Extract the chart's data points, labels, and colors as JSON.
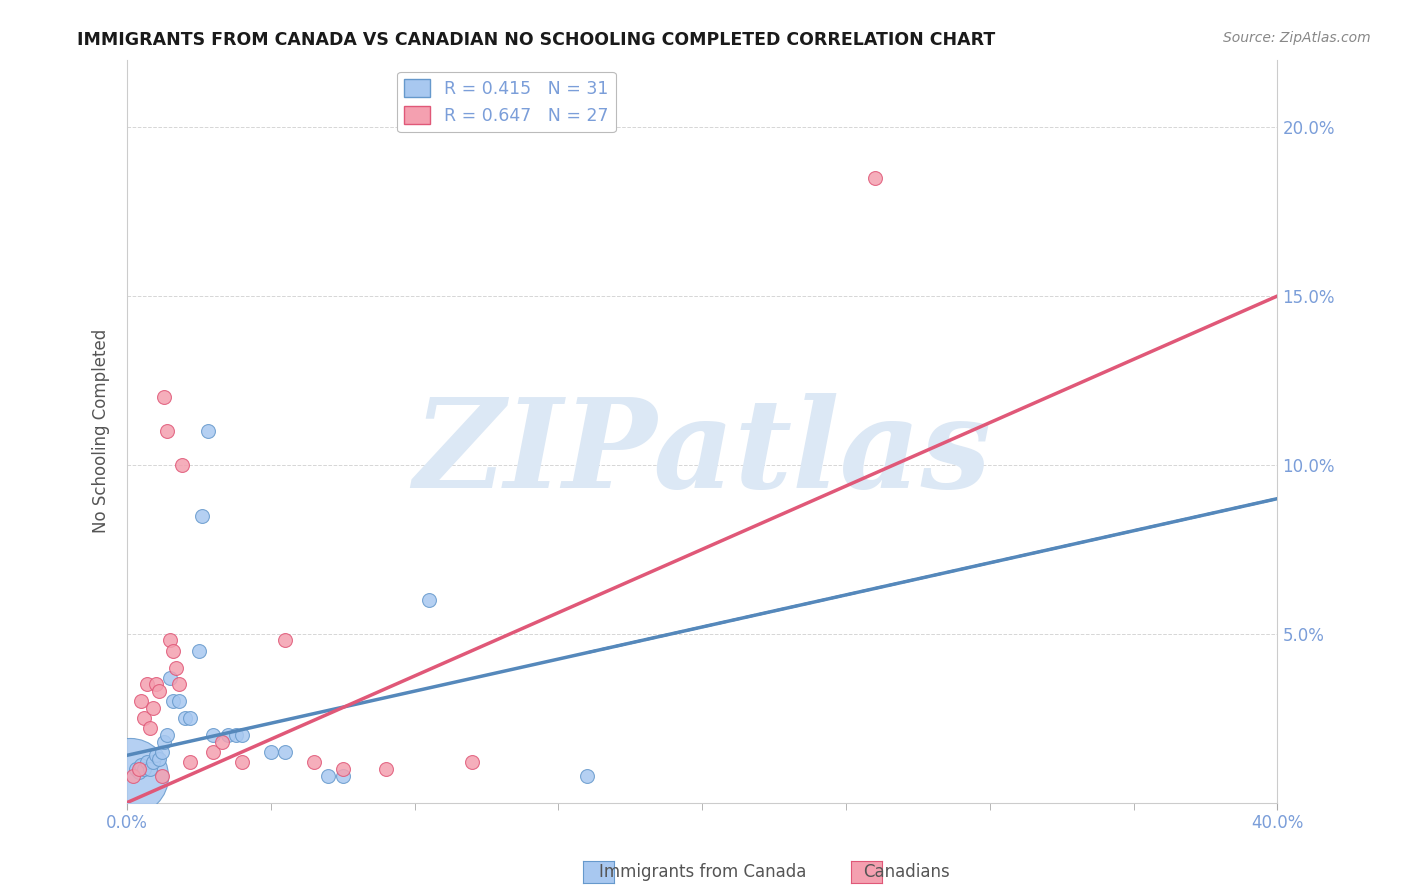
{
  "title": "IMMIGRANTS FROM CANADA VS CANADIAN NO SCHOOLING COMPLETED CORRELATION CHART",
  "source": "Source: ZipAtlas.com",
  "ylabel": "No Schooling Completed",
  "xlim": [
    0.0,
    0.4
  ],
  "ylim": [
    0.0,
    0.22
  ],
  "xtick_positions": [
    0.0,
    0.4
  ],
  "xtick_labels": [
    "0.0%",
    "40.0%"
  ],
  "yticks": [
    0.0,
    0.05,
    0.1,
    0.15,
    0.2
  ],
  "ytick_labels": [
    "",
    "5.0%",
    "10.0%",
    "15.0%",
    "20.0%"
  ],
  "blue_R": "0.415",
  "blue_N": "31",
  "pink_R": "0.647",
  "pink_N": "27",
  "legend_label_blue": "Immigrants from Canada",
  "legend_label_pink": "Canadians",
  "tick_color": "#7b9ed9",
  "grid_color": "#cccccc",
  "blue_color": "#a8c8f0",
  "pink_color": "#f4a0b0",
  "blue_edge_color": "#6699cc",
  "pink_edge_color": "#e05878",
  "blue_line_color": "#5588bb",
  "pink_line_color": "#e05878",
  "blue_scatter": [
    [
      0.001,
      0.008
    ],
    [
      0.003,
      0.01
    ],
    [
      0.004,
      0.009
    ],
    [
      0.005,
      0.011
    ],
    [
      0.006,
      0.01
    ],
    [
      0.007,
      0.012
    ],
    [
      0.008,
      0.01
    ],
    [
      0.009,
      0.012
    ],
    [
      0.01,
      0.014
    ],
    [
      0.011,
      0.013
    ],
    [
      0.012,
      0.015
    ],
    [
      0.013,
      0.018
    ],
    [
      0.014,
      0.02
    ],
    [
      0.015,
      0.037
    ],
    [
      0.016,
      0.03
    ],
    [
      0.018,
      0.03
    ],
    [
      0.02,
      0.025
    ],
    [
      0.022,
      0.025
    ],
    [
      0.025,
      0.045
    ],
    [
      0.026,
      0.085
    ],
    [
      0.028,
      0.11
    ],
    [
      0.03,
      0.02
    ],
    [
      0.035,
      0.02
    ],
    [
      0.038,
      0.02
    ],
    [
      0.04,
      0.02
    ],
    [
      0.05,
      0.015
    ],
    [
      0.055,
      0.015
    ],
    [
      0.07,
      0.008
    ],
    [
      0.075,
      0.008
    ],
    [
      0.105,
      0.06
    ],
    [
      0.16,
      0.008
    ]
  ],
  "blue_scatter_sizes": [
    600,
    20,
    20,
    20,
    20,
    20,
    20,
    20,
    20,
    20,
    20,
    20,
    20,
    20,
    20,
    20,
    20,
    20,
    20,
    20,
    20,
    20,
    20,
    20,
    20,
    20,
    20,
    20,
    20,
    20,
    20
  ],
  "pink_scatter": [
    [
      0.002,
      0.008
    ],
    [
      0.004,
      0.01
    ],
    [
      0.005,
      0.03
    ],
    [
      0.006,
      0.025
    ],
    [
      0.007,
      0.035
    ],
    [
      0.008,
      0.022
    ],
    [
      0.009,
      0.028
    ],
    [
      0.01,
      0.035
    ],
    [
      0.011,
      0.033
    ],
    [
      0.012,
      0.008
    ],
    [
      0.013,
      0.12
    ],
    [
      0.014,
      0.11
    ],
    [
      0.015,
      0.048
    ],
    [
      0.016,
      0.045
    ],
    [
      0.017,
      0.04
    ],
    [
      0.018,
      0.035
    ],
    [
      0.019,
      0.1
    ],
    [
      0.022,
      0.012
    ],
    [
      0.03,
      0.015
    ],
    [
      0.033,
      0.018
    ],
    [
      0.04,
      0.012
    ],
    [
      0.055,
      0.048
    ],
    [
      0.065,
      0.012
    ],
    [
      0.075,
      0.01
    ],
    [
      0.09,
      0.01
    ],
    [
      0.12,
      0.012
    ],
    [
      0.26,
      0.185
    ]
  ],
  "pink_scatter_sizes": [
    20,
    20,
    20,
    20,
    20,
    20,
    20,
    20,
    20,
    20,
    20,
    20,
    20,
    20,
    20,
    20,
    20,
    20,
    20,
    20,
    20,
    20,
    20,
    20,
    20,
    20,
    20
  ],
  "blue_trendline": [
    [
      0.0,
      0.014
    ],
    [
      0.4,
      0.09
    ]
  ],
  "pink_trendline": [
    [
      0.0,
      0.0
    ],
    [
      0.4,
      0.15
    ]
  ],
  "x_minor_ticks": [
    0.05,
    0.1,
    0.15,
    0.2,
    0.25,
    0.3,
    0.35
  ],
  "watermark_text": "ZIPatlas",
  "watermark_color": "#dce8f5"
}
